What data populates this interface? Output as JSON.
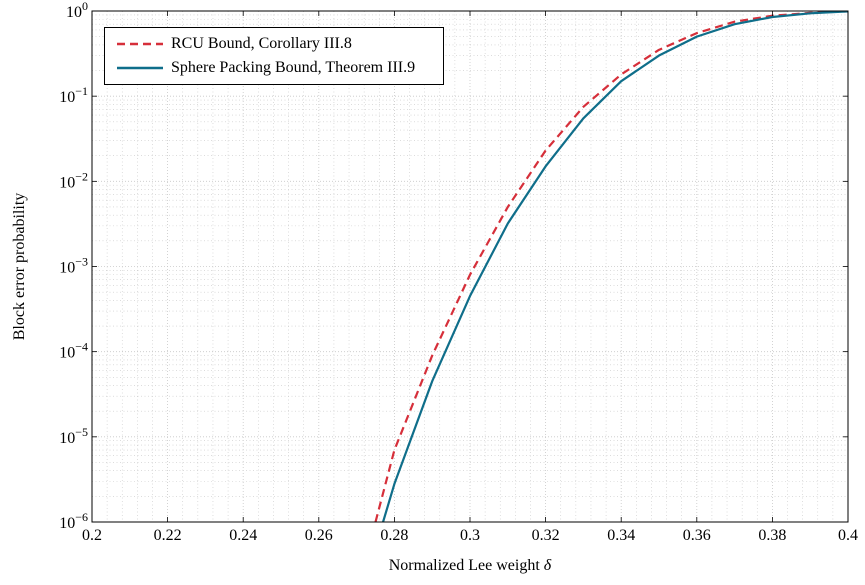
{
  "chart_data": {
    "type": "line",
    "xlabel": "Normalized Lee weight δ",
    "ylabel": "Block error probability",
    "xlim": [
      0.2,
      0.4
    ],
    "ylim": [
      1e-06,
      1
    ],
    "yscale": "log",
    "grid": "major and minor",
    "legend_position": "top-left",
    "x_ticks": [
      "0.2",
      "0.22",
      "0.24",
      "0.26",
      "0.28",
      "0.3",
      "0.32",
      "0.34",
      "0.36",
      "0.38",
      "0.4"
    ],
    "y_ticks": [
      {
        "base": "10",
        "exp": "−6",
        "value": 1e-06
      },
      {
        "base": "10",
        "exp": "−5",
        "value": 1e-05
      },
      {
        "base": "10",
        "exp": "−4",
        "value": 0.0001
      },
      {
        "base": "10",
        "exp": "−3",
        "value": 0.001
      },
      {
        "base": "10",
        "exp": "−2",
        "value": 0.01
      },
      {
        "base": "10",
        "exp": "−1",
        "value": 0.1
      },
      {
        "base": "10",
        "exp": "0",
        "value": 1
      }
    ],
    "series": [
      {
        "name": "RCU Bound, Corollary III.8",
        "color": "#d62f3a",
        "dash": "dashed",
        "x": [
          0.275,
          0.28,
          0.29,
          0.3,
          0.31,
          0.32,
          0.33,
          0.34,
          0.35,
          0.36,
          0.37,
          0.38,
          0.39,
          0.4
        ],
        "y": [
          1e-06,
          7e-06,
          9e-05,
          0.0008,
          0.005,
          0.023,
          0.075,
          0.18,
          0.35,
          0.55,
          0.75,
          0.88,
          0.95,
          0.99
        ]
      },
      {
        "name": "Sphere Packing Bound, Theorem III.9",
        "color": "#0f6e8a",
        "dash": "solid",
        "x": [
          0.277,
          0.28,
          0.29,
          0.3,
          0.31,
          0.32,
          0.33,
          0.34,
          0.35,
          0.36,
          0.37,
          0.38,
          0.39,
          0.4
        ],
        "y": [
          1e-06,
          2.8e-06,
          4.5e-05,
          0.00045,
          0.0032,
          0.015,
          0.055,
          0.15,
          0.3,
          0.5,
          0.7,
          0.85,
          0.94,
          0.99
        ]
      }
    ]
  }
}
